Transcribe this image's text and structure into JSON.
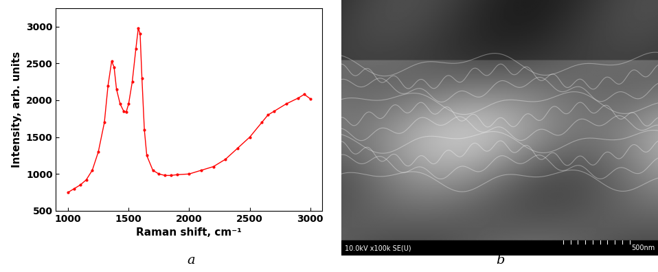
{
  "chart_data": {
    "type": "line",
    "x_label": "Raman shift, cm⁻¹",
    "y_label": "Intensity, arb. units",
    "x": [
      1000,
      1050,
      1100,
      1150,
      1200,
      1250,
      1300,
      1330,
      1360,
      1380,
      1400,
      1430,
      1460,
      1480,
      1500,
      1530,
      1560,
      1580,
      1595,
      1610,
      1630,
      1650,
      1700,
      1750,
      1800,
      1850,
      1900,
      2000,
      2100,
      2200,
      2300,
      2400,
      2500,
      2600,
      2650,
      2700,
      2800,
      2900,
      2950,
      3000
    ],
    "values": [
      750,
      800,
      850,
      920,
      1050,
      1300,
      1700,
      2200,
      2530,
      2450,
      2150,
      1950,
      1850,
      1840,
      1950,
      2250,
      2700,
      2980,
      2900,
      2300,
      1600,
      1250,
      1050,
      1000,
      980,
      980,
      990,
      1000,
      1050,
      1100,
      1200,
      1350,
      1500,
      1700,
      1800,
      1850,
      1950,
      2030,
      2080,
      2020
    ],
    "color": "#ff0000",
    "marker": "o",
    "line_style": "solid",
    "xlim": [
      900,
      3100
    ],
    "ylim": [
      500,
      3250
    ],
    "xticks": [
      1000,
      1500,
      2000,
      2500,
      3000
    ],
    "yticks": [
      500,
      1000,
      1500,
      2000,
      2500,
      3000
    ],
    "grid": false
  },
  "panel_labels": [
    "a",
    "b"
  ],
  "sem_image": {
    "info_bar": "10.0kV x100k SE(U)",
    "scale_label": "500nm"
  }
}
